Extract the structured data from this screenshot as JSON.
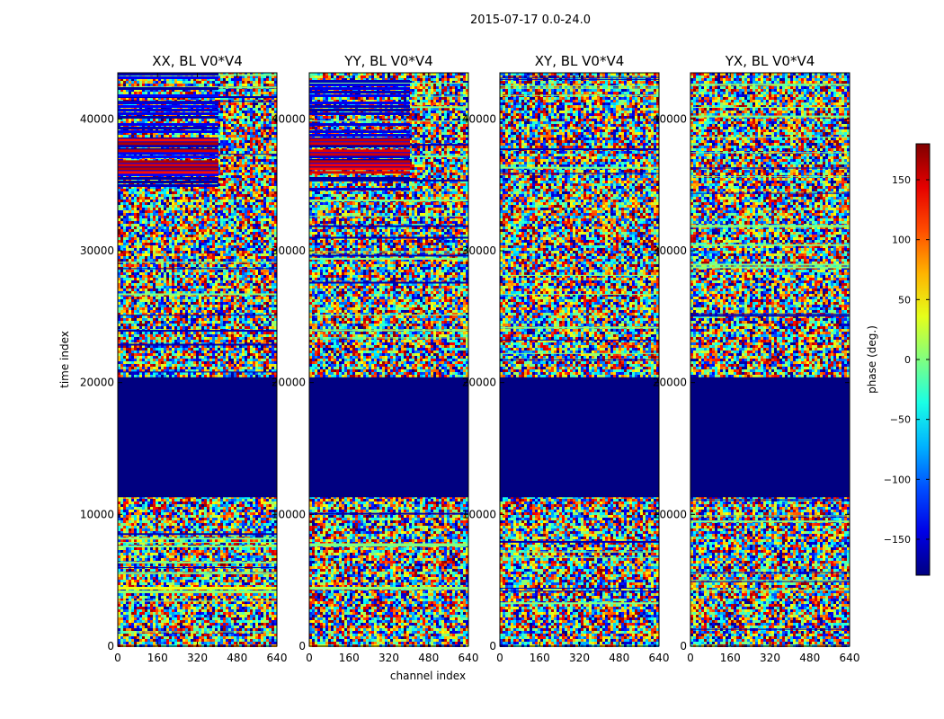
{
  "figure": {
    "suptitle": "2015-07-17 0.0-24.0",
    "xlabel": "channel index",
    "ylabel": "time index"
  },
  "colorbar": {
    "label": "phase (deg.)",
    "range": [
      -180,
      180
    ],
    "ticks": [
      -150,
      -100,
      -50,
      0,
      50,
      100,
      150
    ],
    "tick_labels": [
      "−150",
      "−100",
      "−50",
      "0",
      "50",
      "100",
      "150"
    ],
    "colormap": "jet"
  },
  "chart_data": [
    {
      "type": "heatmap",
      "title": "XX, BL V0*V4",
      "x_range": [
        0,
        640
      ],
      "y_range": [
        0,
        43500
      ],
      "x_ticks": [
        0,
        160,
        320,
        480,
        640
      ],
      "y_ticks": [
        0,
        10000,
        20000,
        30000,
        40000
      ],
      "value_range": [
        -180,
        180
      ],
      "flagged_time_ranges": [
        [
          11300,
          20400
        ]
      ],
      "flagged_value": -180,
      "coherent_regions": [
        {
          "channels": [
            0,
            405
          ],
          "times": [
            34500,
            43500
          ],
          "phase": -150
        },
        {
          "channels": [
            0,
            405
          ],
          "times": [
            36000,
            38500
          ],
          "phase": 150
        },
        {
          "channels": [
            0,
            640
          ],
          "times": [
            4000,
            4500
          ],
          "phase": 20
        }
      ]
    },
    {
      "type": "heatmap",
      "title": "YY, BL V0*V4",
      "x_range": [
        0,
        640
      ],
      "y_range": [
        0,
        43500
      ],
      "x_ticks": [
        0,
        160,
        320,
        480,
        640
      ],
      "y_ticks": [
        0,
        10000,
        20000,
        30000,
        40000
      ],
      "value_range": [
        -180,
        180
      ],
      "flagged_time_ranges": [
        [
          11300,
          20400
        ]
      ],
      "flagged_value": -180,
      "coherent_regions": [
        {
          "channels": [
            0,
            405
          ],
          "times": [
            34500,
            43500
          ],
          "phase": -150
        },
        {
          "channels": [
            0,
            405
          ],
          "times": [
            36000,
            38500
          ],
          "phase": 150
        },
        {
          "channels": [
            0,
            640
          ],
          "times": [
            4000,
            4500
          ],
          "phase": 20
        }
      ]
    },
    {
      "type": "heatmap",
      "title": "XY, BL V0*V4",
      "x_range": [
        0,
        640
      ],
      "y_range": [
        0,
        43500
      ],
      "x_ticks": [
        0,
        160,
        320,
        480,
        640
      ],
      "y_ticks": [
        0,
        10000,
        20000,
        30000,
        40000
      ],
      "value_range": [
        -180,
        180
      ],
      "flagged_time_ranges": [
        [
          11300,
          20400
        ]
      ],
      "flagged_value": -180,
      "coherent_regions": []
    },
    {
      "type": "heatmap",
      "title": "YX, BL V0*V4",
      "x_range": [
        0,
        640
      ],
      "y_range": [
        0,
        43500
      ],
      "x_ticks": [
        0,
        160,
        320,
        480,
        640
      ],
      "y_ticks": [
        0,
        10000,
        20000,
        30000,
        40000
      ],
      "value_range": [
        -180,
        180
      ],
      "flagged_time_ranges": [
        [
          11300,
          20400
        ]
      ],
      "flagged_value": -180,
      "coherent_regions": []
    }
  ]
}
